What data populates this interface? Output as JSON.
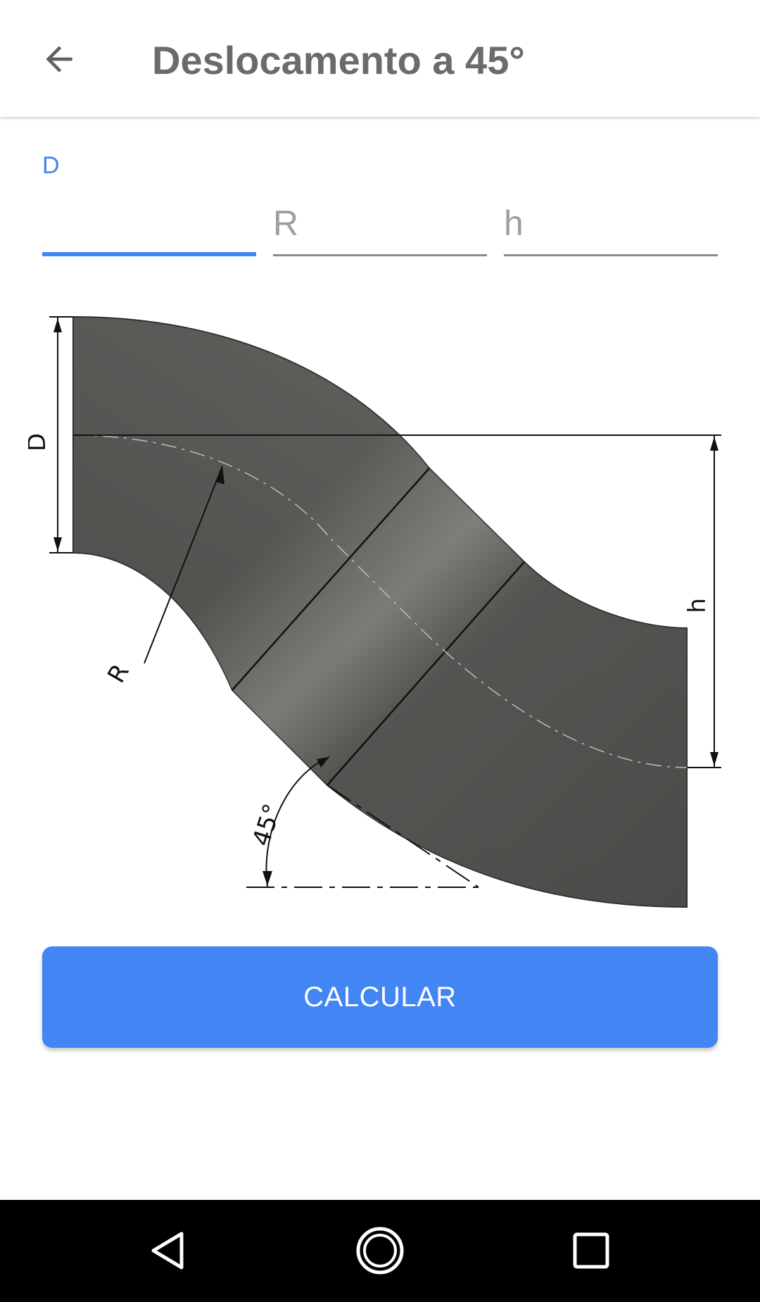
{
  "appbar": {
    "title": "Deslocamento a 45°",
    "back_icon": "arrow-left-icon"
  },
  "form": {
    "d_label": "D",
    "d_value": "",
    "r_placeholder": "R",
    "h_placeholder": "h"
  },
  "diagram": {
    "label_d": "D",
    "label_r": "R",
    "label_h": "h",
    "label_angle": "45°"
  },
  "actions": {
    "calculate_label": "CALCULAR"
  },
  "navbar": {
    "back_icon": "triangle-back-icon",
    "home_icon": "circle-home-icon",
    "recents_icon": "square-recents-icon"
  },
  "colors": {
    "accent": "#4285f4",
    "title": "#6b6b6b",
    "pipe": "#4a4a48",
    "navbar": "#000000"
  }
}
